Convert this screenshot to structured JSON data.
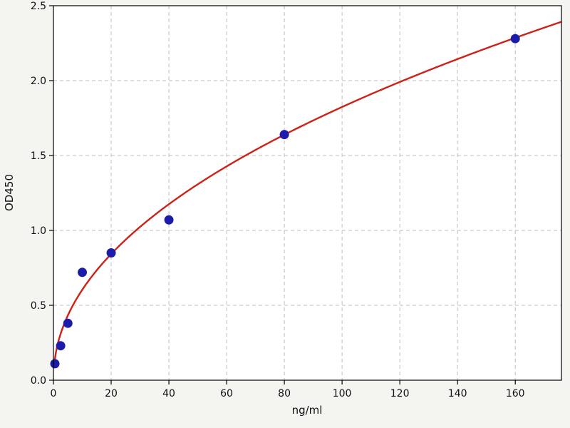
{
  "chart_data": {
    "type": "scatter",
    "title": "",
    "xlabel": "ng/ml",
    "ylabel": "OD450",
    "xlim": [
      0,
      176
    ],
    "ylim": [
      0,
      2.5
    ],
    "xticks": [
      0,
      20,
      40,
      60,
      80,
      100,
      120,
      140,
      160
    ],
    "xtick_labels": [
      "0",
      "20",
      "40",
      "60",
      "80",
      "100",
      "120",
      "140",
      "160"
    ],
    "yticks": [
      0,
      0.5,
      1.0,
      1.5,
      2.0,
      2.5
    ],
    "ytick_labels": [
      "0.0",
      "0.5",
      "1.0",
      "1.5",
      "2.0",
      "2.5"
    ],
    "grid": true,
    "legend": "none",
    "series": [
      {
        "name": "standard-points",
        "type": "scatter",
        "x": [
          0.5,
          2.5,
          5,
          10,
          20,
          40,
          80,
          160
        ],
        "y": [
          0.11,
          0.23,
          0.38,
          0.72,
          0.85,
          1.07,
          1.64,
          2.28
        ]
      },
      {
        "name": "fit-curve",
        "type": "power-fit",
        "a": 0.2,
        "b": 0.48,
        "x_start": 0.35,
        "x_end": 176
      }
    ],
    "colors": {
      "point": "#1c1caa",
      "curve": "#cc2218",
      "grid": "#bfbfbf",
      "axis": "#000000",
      "figure_background": "#f4f4f1",
      "plot_background": "#ffffff"
    }
  }
}
